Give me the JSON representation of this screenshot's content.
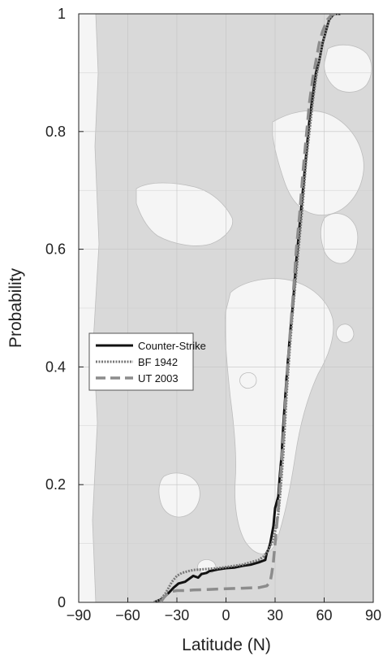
{
  "chart_data": {
    "type": "line",
    "title": "",
    "xlabel": "Latitude (N)",
    "ylabel": "Probability",
    "xlim": [
      -90,
      90
    ],
    "ylim": [
      0,
      1
    ],
    "xticks": [
      -90,
      -60,
      -30,
      0,
      30,
      60,
      90
    ],
    "yticks": [
      0,
      0.2,
      0.4,
      0.6,
      0.8,
      1
    ],
    "ytick_labels": [
      "0",
      "0.2",
      "0.4",
      "0.6",
      "0.8",
      "1"
    ],
    "grid": true,
    "background": "world map (land/ocean) behind plot area",
    "legend_position": "center-left",
    "series": [
      {
        "name": "Counter-Strike",
        "color": "#111111",
        "style": "solid",
        "x": [
          -44,
          -39,
          -35,
          -32,
          -29,
          -25,
          -20,
          -17,
          -15,
          -12,
          -10,
          -5,
          0,
          5,
          10,
          15,
          20,
          24,
          25,
          26,
          27,
          29,
          30,
          32,
          33,
          34,
          35,
          37,
          39,
          41,
          43,
          45,
          47,
          49,
          51,
          53,
          55,
          57,
          59,
          61,
          63,
          66,
          70
        ],
        "y": [
          0.0,
          0.006,
          0.016,
          0.025,
          0.032,
          0.035,
          0.045,
          0.042,
          0.048,
          0.05,
          0.053,
          0.056,
          0.058,
          0.059,
          0.062,
          0.064,
          0.068,
          0.072,
          0.085,
          0.09,
          0.1,
          0.13,
          0.16,
          0.18,
          0.22,
          0.25,
          0.3,
          0.38,
          0.45,
          0.51,
          0.58,
          0.64,
          0.7,
          0.76,
          0.82,
          0.86,
          0.9,
          0.92,
          0.95,
          0.97,
          0.99,
          1.0,
          1.0
        ]
      },
      {
        "name": "BF 1942",
        "color": "#777777",
        "style": "dotted",
        "x": [
          -44,
          -40,
          -37,
          -35,
          -33,
          -30,
          -27,
          -23,
          -20,
          -15,
          -10,
          -5,
          0,
          5,
          10,
          15,
          20,
          23,
          25,
          26,
          28,
          30,
          32,
          33,
          35,
          37,
          39,
          41,
          43,
          45,
          47,
          49,
          51,
          53,
          55,
          57,
          59,
          61,
          63,
          66,
          70
        ],
        "y": [
          0.0,
          0.005,
          0.015,
          0.025,
          0.035,
          0.045,
          0.05,
          0.053,
          0.055,
          0.056,
          0.057,
          0.058,
          0.06,
          0.062,
          0.064,
          0.068,
          0.072,
          0.078,
          0.085,
          0.09,
          0.1,
          0.12,
          0.15,
          0.18,
          0.25,
          0.35,
          0.43,
          0.5,
          0.56,
          0.62,
          0.68,
          0.75,
          0.8,
          0.85,
          0.89,
          0.92,
          0.95,
          0.97,
          0.99,
          1.0,
          1.0
        ]
      },
      {
        "name": "UT 2003",
        "color": "#8c8c8c",
        "style": "dashed",
        "x": [
          -40,
          -38,
          -36,
          -34,
          -30,
          -25,
          -20,
          -10,
          0,
          10,
          20,
          25,
          27,
          28,
          29,
          30,
          31,
          32,
          33,
          35,
          37,
          39,
          41,
          43,
          45,
          47,
          49,
          51,
          53,
          55,
          57,
          59,
          62,
          65,
          68
        ],
        "y": [
          0.0,
          0.008,
          0.014,
          0.018,
          0.02,
          0.02,
          0.021,
          0.022,
          0.023,
          0.024,
          0.025,
          0.028,
          0.035,
          0.05,
          0.07,
          0.1,
          0.13,
          0.16,
          0.2,
          0.28,
          0.37,
          0.45,
          0.52,
          0.6,
          0.66,
          0.73,
          0.79,
          0.85,
          0.89,
          0.92,
          0.95,
          0.97,
          0.99,
          1.0,
          1.0
        ]
      }
    ]
  }
}
